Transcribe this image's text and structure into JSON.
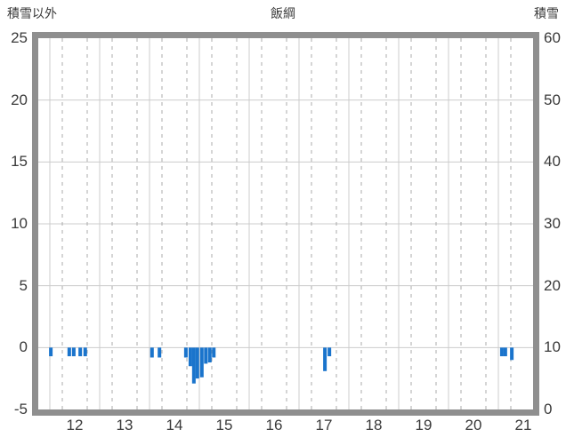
{
  "header": {
    "left_axis_title": "積雪以外",
    "title": "飯綱",
    "right_axis_title": "積雪"
  },
  "chart_data": {
    "type": "bar",
    "title": "飯綱",
    "left_axis": {
      "label": "積雪以外",
      "ticks": [
        25,
        20,
        15,
        10,
        5,
        0,
        -5
      ],
      "range": [
        -5,
        25
      ]
    },
    "right_axis": {
      "label": "積雪",
      "ticks": [
        60,
        50,
        40,
        30,
        20,
        10,
        0
      ],
      "range": [
        0,
        60
      ]
    },
    "x_axis": {
      "label": "",
      "ticks": [
        12,
        13,
        14,
        15,
        16,
        17,
        18,
        19,
        20,
        21
      ],
      "dashed_hour_marks": [
        6,
        18
      ]
    },
    "grid": true,
    "bars": [
      {
        "x": 12.02,
        "v": -0.7
      },
      {
        "x": 12.39,
        "v": -0.7
      },
      {
        "x": 12.48,
        "v": -0.7
      },
      {
        "x": 12.61,
        "v": -0.7
      },
      {
        "x": 12.71,
        "v": -0.7
      },
      {
        "x": 14.05,
        "v": -0.8
      },
      {
        "x": 14.2,
        "v": -0.8
      },
      {
        "x": 14.73,
        "v": -0.8
      },
      {
        "x": 14.82,
        "v": -1.5
      },
      {
        "x": 14.89,
        "v": -2.9
      },
      {
        "x": 14.96,
        "v": -2.5
      },
      {
        "x": 15.05,
        "v": -2.4
      },
      {
        "x": 15.13,
        "v": -1.3
      },
      {
        "x": 15.21,
        "v": -1.2
      },
      {
        "x": 15.29,
        "v": -0.8
      },
      {
        "x": 17.52,
        "v": -1.9
      },
      {
        "x": 17.61,
        "v": -0.7
      },
      {
        "x": 21.07,
        "v": -0.7
      },
      {
        "x": 21.14,
        "v": -0.7
      },
      {
        "x": 21.27,
        "v": -1.0
      }
    ],
    "colors": {
      "bar": "#1a74cc",
      "frame": "#8f8f8f",
      "grid_solid": "#cccccc",
      "grid_dashed": "#ababab",
      "text": "#3a3a3a"
    }
  }
}
